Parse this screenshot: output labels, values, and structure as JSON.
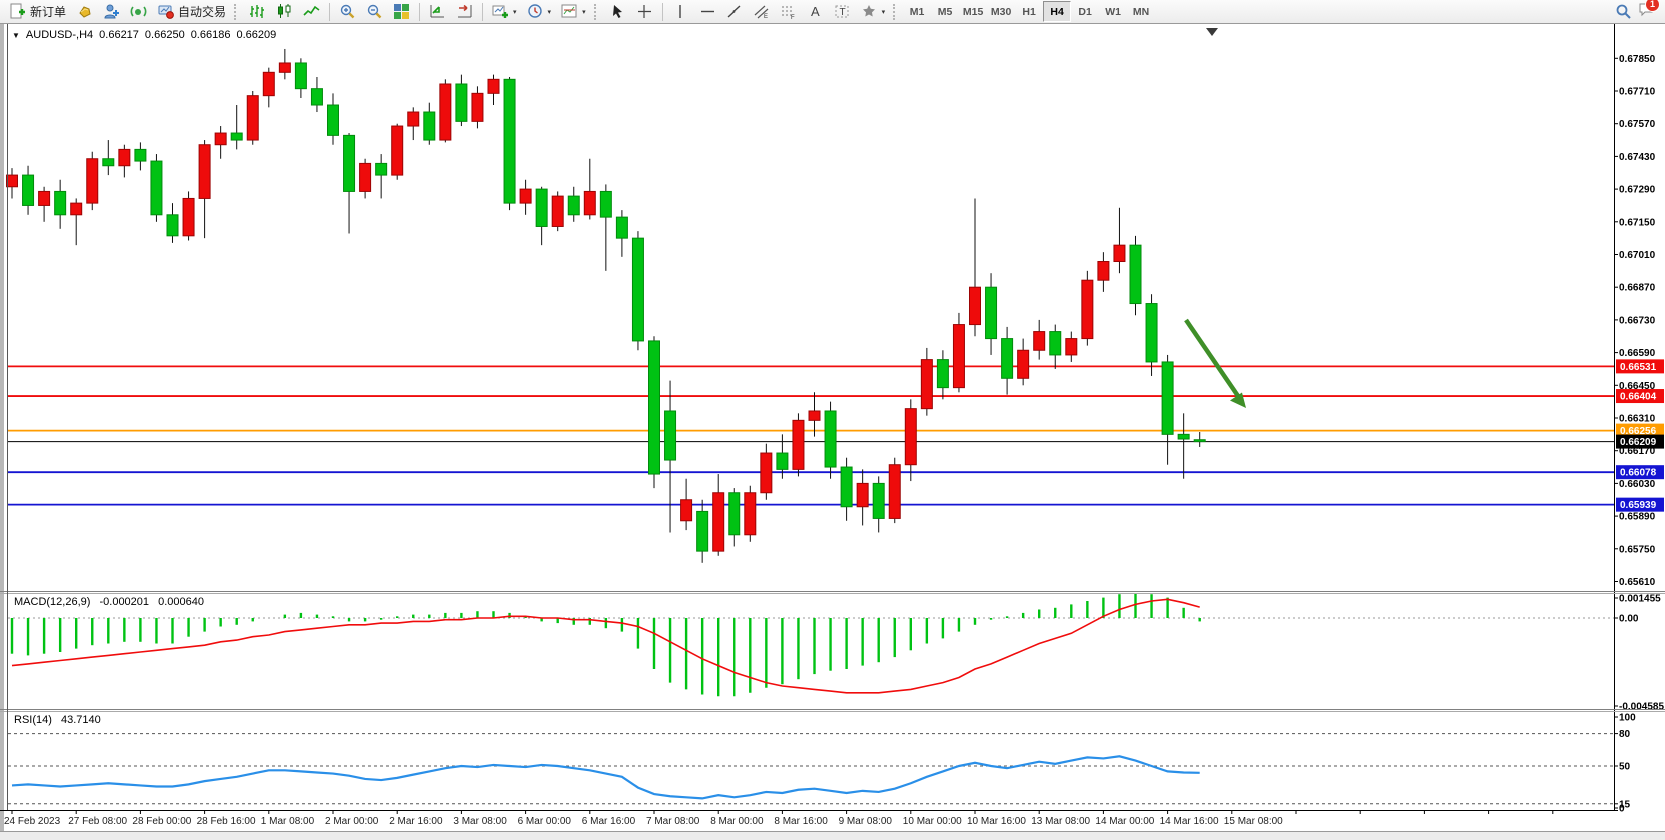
{
  "toolbar": {
    "new_order_label": "新订单",
    "auto_trading_label": "自动交易",
    "timeframes": [
      "M1",
      "M5",
      "M15",
      "M30",
      "H1",
      "H4",
      "D1",
      "W1",
      "MN"
    ],
    "active_timeframe": "H4",
    "notification_badge": "1"
  },
  "chart": {
    "symbol_title": "AUDUSD-,H4",
    "ohlc": {
      "open": "0.66217",
      "high": "0.66250",
      "low": "0.66186",
      "close": "0.66209"
    },
    "price_axis_ticks": [
      "0.67850",
      "0.67710",
      "0.67570",
      "0.67430",
      "0.67290",
      "0.67150",
      "0.67010",
      "0.66870",
      "0.66730",
      "0.66590",
      "0.66450",
      "0.66310",
      "0.66170",
      "0.66030",
      "0.65890",
      "0.65750",
      "0.65610"
    ],
    "horizontal_lines": [
      {
        "label": "0.66531",
        "value": 0.66531,
        "color": "#f00c0c",
        "kind": "resistance"
      },
      {
        "label": "0.66404",
        "value": 0.66404,
        "color": "#f00c0c",
        "kind": "resistance"
      },
      {
        "label": "0.66256",
        "value": 0.66256,
        "color": "#ff9c00",
        "kind": "pivot"
      },
      {
        "label": "0.66209",
        "value": 0.66209,
        "color": "#000000",
        "kind": "bid"
      },
      {
        "label": "0.66078",
        "value": 0.66078,
        "color": "#1414d2",
        "kind": "support"
      },
      {
        "label": "0.65939",
        "value": 0.65939,
        "color": "#1414d2",
        "kind": "support"
      }
    ],
    "time_axis_labels": [
      "24 Feb 2023",
      "27 Feb 08:00",
      "28 Feb 00:00",
      "28 Feb 16:00",
      "1 Mar 08:00",
      "2 Mar 00:00",
      "2 Mar 16:00",
      "3 Mar 08:00",
      "6 Mar 00:00",
      "6 Mar 16:00",
      "7 Mar 08:00",
      "8 Mar 00:00",
      "8 Mar 16:00",
      "9 Mar 08:00",
      "10 Mar 00:00",
      "10 Mar 16:00",
      "13 Mar 08:00",
      "14 Mar 00:00",
      "14 Mar 16:00",
      "15 Mar 08:00"
    ]
  },
  "macd": {
    "label": "MACD(12,26,9)",
    "main_value": "-0.000201",
    "signal_value": "0.000640",
    "axis_labels": [
      "0.001455",
      "0.00",
      "-0.004585"
    ]
  },
  "rsi": {
    "label": "RSI(14)",
    "value": "43.7140",
    "axis_labels": [
      "100",
      "80",
      "50",
      "15",
      "0"
    ]
  },
  "chart_data": {
    "type": "candlestick",
    "symbol": "AUDUSD",
    "timeframe": "H4",
    "bull_color": "#ee0b0b",
    "bear_color": "#00c213",
    "note": "red = bullish, green = bearish (CN convention)",
    "ylim": [
      0.6561,
      0.6785
    ],
    "candles": [
      [
        0.673,
        0.6738,
        0.6725,
        0.6735
      ],
      [
        0.6735,
        0.6739,
        0.6718,
        0.6722
      ],
      [
        0.6722,
        0.673,
        0.6715,
        0.6728
      ],
      [
        0.6728,
        0.6733,
        0.6712,
        0.6718
      ],
      [
        0.6718,
        0.6725,
        0.6705,
        0.6723
      ],
      [
        0.6723,
        0.6745,
        0.672,
        0.6742
      ],
      [
        0.6742,
        0.675,
        0.6735,
        0.6739
      ],
      [
        0.6739,
        0.6748,
        0.6734,
        0.6746
      ],
      [
        0.6746,
        0.6749,
        0.6737,
        0.6741
      ],
      [
        0.6741,
        0.6744,
        0.6715,
        0.6718
      ],
      [
        0.6718,
        0.6723,
        0.6706,
        0.6709
      ],
      [
        0.6709,
        0.6728,
        0.6707,
        0.6725
      ],
      [
        0.6725,
        0.675,
        0.6708,
        0.6748
      ],
      [
        0.6748,
        0.6756,
        0.6742,
        0.6753
      ],
      [
        0.6753,
        0.6765,
        0.6746,
        0.675
      ],
      [
        0.675,
        0.6771,
        0.6748,
        0.6769
      ],
      [
        0.6769,
        0.6781,
        0.6764,
        0.6779
      ],
      [
        0.6779,
        0.6789,
        0.6776,
        0.6783
      ],
      [
        0.6783,
        0.6785,
        0.6768,
        0.6772
      ],
      [
        0.6772,
        0.6777,
        0.6762,
        0.6765
      ],
      [
        0.6765,
        0.677,
        0.6748,
        0.6752
      ],
      [
        0.6752,
        0.6753,
        0.671,
        0.6728
      ],
      [
        0.6728,
        0.6742,
        0.6725,
        0.674
      ],
      [
        0.674,
        0.6744,
        0.6725,
        0.6735
      ],
      [
        0.6735,
        0.6757,
        0.6733,
        0.6756
      ],
      [
        0.6756,
        0.6764,
        0.675,
        0.6762
      ],
      [
        0.6762,
        0.6766,
        0.6748,
        0.675
      ],
      [
        0.675,
        0.6776,
        0.6749,
        0.6774
      ],
      [
        0.6774,
        0.6778,
        0.6756,
        0.6758
      ],
      [
        0.6758,
        0.6773,
        0.6755,
        0.677
      ],
      [
        0.677,
        0.6778,
        0.6765,
        0.6776
      ],
      [
        0.6776,
        0.6777,
        0.672,
        0.6723
      ],
      [
        0.6723,
        0.6733,
        0.6718,
        0.6729
      ],
      [
        0.6729,
        0.673,
        0.6705,
        0.6713
      ],
      [
        0.6713,
        0.6728,
        0.6711,
        0.6726
      ],
      [
        0.6726,
        0.673,
        0.6715,
        0.6718
      ],
      [
        0.6718,
        0.6742,
        0.6716,
        0.6728
      ],
      [
        0.6728,
        0.6731,
        0.6694,
        0.6717
      ],
      [
        0.6717,
        0.672,
        0.67,
        0.6708
      ],
      [
        0.6708,
        0.6711,
        0.666,
        0.6664
      ],
      [
        0.6664,
        0.6666,
        0.6601,
        0.6607
      ],
      [
        0.6634,
        0.6647,
        0.6582,
        0.6613
      ],
      [
        0.6587,
        0.6605,
        0.6583,
        0.6596
      ],
      [
        0.6591,
        0.6596,
        0.6569,
        0.6574
      ],
      [
        0.6574,
        0.6607,
        0.6572,
        0.6599
      ],
      [
        0.6599,
        0.6601,
        0.6576,
        0.6581
      ],
      [
        0.6581,
        0.6602,
        0.6578,
        0.6599
      ],
      [
        0.6599,
        0.662,
        0.6596,
        0.6616
      ],
      [
        0.6616,
        0.6624,
        0.6605,
        0.6609
      ],
      [
        0.6609,
        0.6633,
        0.6606,
        0.663
      ],
      [
        0.663,
        0.6642,
        0.6623,
        0.6634
      ],
      [
        0.6634,
        0.6638,
        0.6605,
        0.661
      ],
      [
        0.661,
        0.6614,
        0.6587,
        0.6593
      ],
      [
        0.6593,
        0.6609,
        0.6585,
        0.6603
      ],
      [
        0.6603,
        0.6606,
        0.6582,
        0.6588
      ],
      [
        0.6588,
        0.6614,
        0.6586,
        0.6611
      ],
      [
        0.6611,
        0.6639,
        0.6604,
        0.6635
      ],
      [
        0.6635,
        0.6661,
        0.6632,
        0.6656
      ],
      [
        0.6656,
        0.666,
        0.6639,
        0.6644
      ],
      [
        0.6644,
        0.6676,
        0.6642,
        0.6671
      ],
      [
        0.6671,
        0.6725,
        0.6666,
        0.6687
      ],
      [
        0.6687,
        0.6693,
        0.6658,
        0.6665
      ],
      [
        0.6665,
        0.667,
        0.6641,
        0.6648
      ],
      [
        0.6648,
        0.6665,
        0.6645,
        0.666
      ],
      [
        0.666,
        0.6673,
        0.6656,
        0.6668
      ],
      [
        0.6668,
        0.6671,
        0.6652,
        0.6658
      ],
      [
        0.6658,
        0.6668,
        0.6655,
        0.6665
      ],
      [
        0.6665,
        0.6694,
        0.6662,
        0.669
      ],
      [
        0.669,
        0.6702,
        0.6685,
        0.6698
      ],
      [
        0.6698,
        0.6721,
        0.6693,
        0.6705
      ],
      [
        0.6705,
        0.6709,
        0.6675,
        0.668
      ],
      [
        0.668,
        0.6684,
        0.6649,
        0.6655
      ],
      [
        0.6655,
        0.6658,
        0.6611,
        0.6624
      ],
      [
        0.6624,
        0.6633,
        0.6605,
        0.6622
      ],
      [
        0.66217,
        0.6625,
        0.66186,
        0.66209
      ]
    ],
    "macd_histogram": [
      -0.0021,
      -0.0022,
      -0.0021,
      -0.002,
      -0.0018,
      -0.0016,
      -0.0015,
      -0.0014,
      -0.0014,
      -0.0015,
      -0.0015,
      -0.0011,
      -0.0008,
      -0.0005,
      -0.0004,
      -0.0002,
      0.0,
      0.0002,
      0.0003,
      0.0002,
      0.0001,
      -0.0002,
      -0.0002,
      -0.0001,
      0.0001,
      0.0002,
      0.0002,
      0.0003,
      0.0003,
      0.0004,
      0.0004,
      0.0003,
      0.0001,
      -0.0002,
      -0.0003,
      -0.0004,
      -0.0004,
      -0.0006,
      -0.0008,
      -0.0018,
      -0.003,
      -0.0038,
      -0.0042,
      -0.0045,
      -0.0046,
      -0.0046,
      -0.0044,
      -0.0041,
      -0.0039,
      -0.0036,
      -0.0033,
      -0.0031,
      -0.003,
      -0.0028,
      -0.0026,
      -0.0023,
      -0.0019,
      -0.0015,
      -0.0012,
      -0.0008,
      -0.0004,
      -0.0001,
      0.0001,
      0.0003,
      0.0005,
      0.0006,
      0.0008,
      0.001,
      0.0012,
      0.0014,
      0.00145,
      0.0014,
      0.0012,
      0.0006,
      -0.000201
    ],
    "macd_signal": [
      -0.0028,
      -0.0027,
      -0.0026,
      -0.0025,
      -0.0024,
      -0.0023,
      -0.0022,
      -0.0021,
      -0.002,
      -0.0019,
      -0.0018,
      -0.0017,
      -0.0016,
      -0.0014,
      -0.0013,
      -0.0011,
      -0.001,
      -0.0008,
      -0.0007,
      -0.0006,
      -0.0005,
      -0.0004,
      -0.0004,
      -0.0003,
      -0.0003,
      -0.0002,
      -0.0002,
      -0.0001,
      -0.0001,
      0.0,
      0.0,
      0.0001,
      0.0001,
      0.0,
      0.0,
      -0.0001,
      -0.0001,
      -0.0002,
      -0.0003,
      -0.0005,
      -0.0009,
      -0.0014,
      -0.0019,
      -0.0024,
      -0.0028,
      -0.0032,
      -0.0035,
      -0.0038,
      -0.004,
      -0.0041,
      -0.0042,
      -0.0043,
      -0.0044,
      -0.0044,
      -0.0044,
      -0.0043,
      -0.0042,
      -0.004,
      -0.0038,
      -0.0035,
      -0.003,
      -0.0027,
      -0.0023,
      -0.0019,
      -0.0015,
      -0.0012,
      -0.0009,
      -0.0004,
      0.0001,
      0.0005,
      0.0008,
      0.001,
      0.0011,
      0.0009,
      0.00064
    ],
    "rsi_series": [
      32,
      33,
      32,
      31,
      32,
      33,
      34,
      33,
      32,
      31,
      31,
      33,
      36,
      38,
      40,
      43,
      46,
      46,
      45,
      44,
      43,
      41,
      38,
      37,
      39,
      42,
      45,
      48,
      50,
      49,
      51,
      50,
      49,
      51,
      50,
      48,
      46,
      43,
      40,
      30,
      24,
      22,
      21,
      20,
      23,
      21,
      23,
      26,
      25,
      28,
      29,
      27,
      25,
      27,
      26,
      29,
      34,
      40,
      45,
      50,
      53,
      50,
      48,
      51,
      54,
      52,
      55,
      58,
      57,
      59,
      55,
      50,
      45,
      44,
      43.7
    ],
    "annotation_arrow": {
      "color": "#3f8f28",
      "direction": "down-right"
    }
  }
}
